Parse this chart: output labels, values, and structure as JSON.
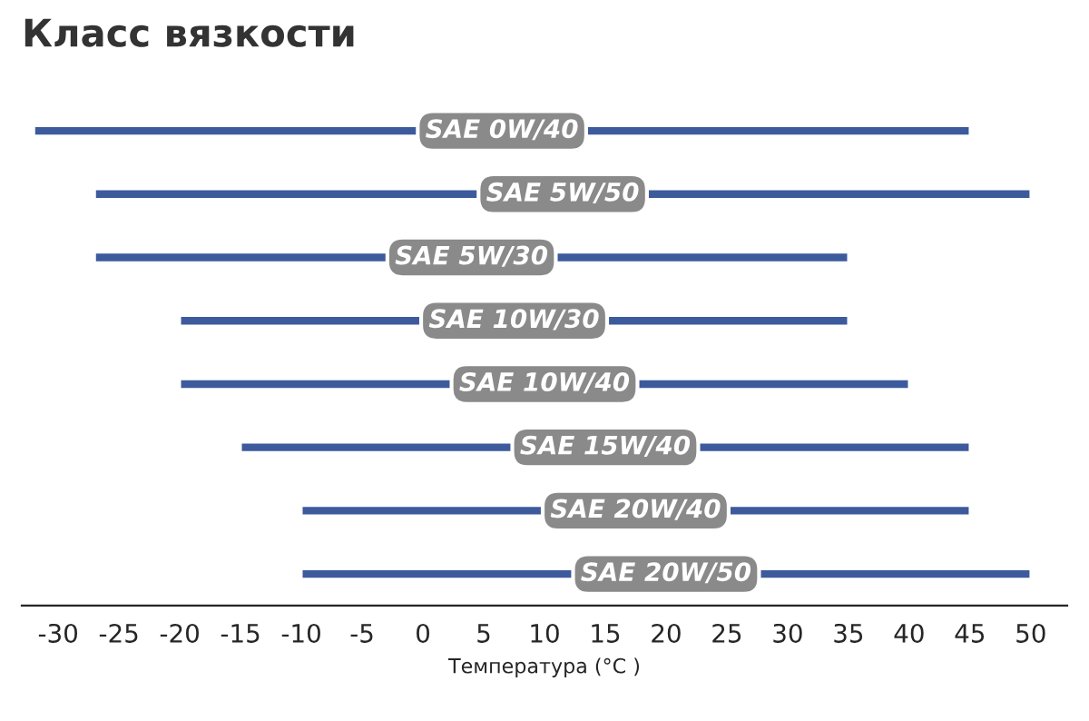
{
  "chart_data": {
    "type": "bar",
    "orientation": "horizontal",
    "title": "Класс вязкости",
    "xlabel": "Температура (°C )",
    "categories": [
      "SAE 0W/40",
      "SAE 5W/50",
      "SAE 5W/30",
      "SAE 10W/30",
      "SAE 10W/40",
      "SAE 15W/40",
      "SAE 20W/40",
      "SAE 20W/50"
    ],
    "base": [
      -32,
      -27,
      -27,
      -20,
      -20,
      -15,
      -10,
      -10
    ],
    "values": [
      77,
      77,
      62,
      55,
      60,
      60,
      55,
      60
    ],
    "color": "#3d5a9c",
    "xlim": [
      -33,
      53
    ],
    "xticks": [
      -30,
      -25,
      -20,
      -15,
      -10,
      -5,
      0,
      5,
      10,
      15,
      20,
      25,
      30,
      35,
      40,
      45,
      50
    ],
    "tick_labels": "x",
    "legend": false,
    "grid": false
  }
}
